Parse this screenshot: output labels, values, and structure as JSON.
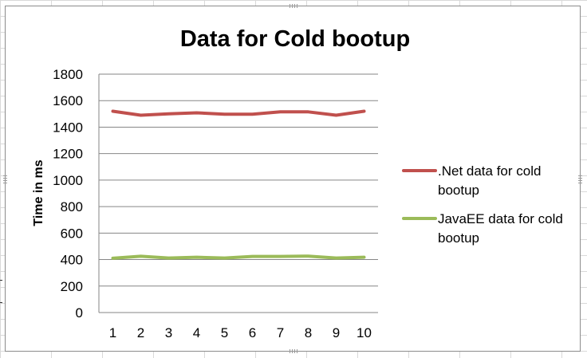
{
  "chart_data": {
    "type": "line",
    "title": "Data for Cold bootup",
    "xlabel": "",
    "ylabel": "Time in ms",
    "x": [
      1,
      2,
      3,
      4,
      5,
      6,
      7,
      8,
      9,
      10
    ],
    "ylim": [
      0,
      1800
    ],
    "y_ticks": [
      0,
      200,
      400,
      600,
      800,
      1000,
      1200,
      1400,
      1600,
      1800
    ],
    "grid": "horizontal",
    "legend_position": "right",
    "series": [
      {
        "name_lines": [
          ".Net data for cold",
          "bootup"
        ],
        "color": "#c0504d",
        "values": [
          1520,
          1490,
          1500,
          1508,
          1498,
          1498,
          1515,
          1515,
          1490,
          1520
        ]
      },
      {
        "name_lines": [
          "JavaEE data for cold",
          "bootup"
        ],
        "color": "#9bbb59",
        "values": [
          410,
          425,
          412,
          418,
          412,
          424,
          424,
          426,
          412,
          418
        ]
      }
    ]
  }
}
